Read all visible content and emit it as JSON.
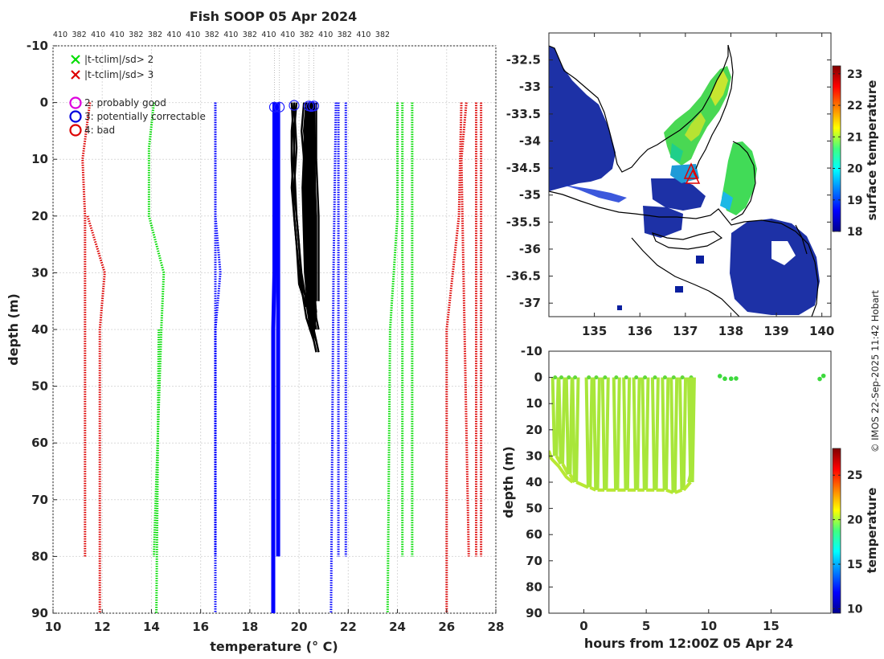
{
  "title": "Fish SOOP 05 Apr 2024",
  "credit": "© IMOS 22-Sep-2025 11:42 Hobart",
  "chart_data": [
    {
      "id": "profiles",
      "type": "line",
      "xlabel": "temperature (° C)",
      "ylabel": "depth (m)",
      "xlim": [
        10,
        28
      ],
      "ylim": [
        90,
        -10
      ],
      "xticks": [
        10,
        12,
        14,
        16,
        18,
        20,
        22,
        24,
        26,
        28
      ],
      "yticks": [
        -10,
        0,
        10,
        20,
        30,
        40,
        50,
        60,
        70,
        80,
        90
      ],
      "top_labels": [
        "410",
        "382",
        "410",
        "410",
        "382",
        "382",
        "410",
        "410",
        "382",
        "410",
        "382",
        "410",
        "410",
        "382",
        "410",
        "382",
        "410",
        "382"
      ],
      "legend": [
        {
          "marker": "x",
          "color": "#00dd00",
          "label": "|t-tclim|/sd> 2"
        },
        {
          "marker": "x",
          "color": "#dd0000",
          "label": "|t-tclim|/sd> 3"
        },
        {
          "marker": "o",
          "color": "#dd00dd",
          "label": "2: probably good"
        },
        {
          "marker": "o",
          "color": "#0000dd",
          "label": "3: potentially correctable"
        },
        {
          "marker": "o",
          "color": "#dd0000",
          "label": "4: bad"
        }
      ],
      "climatology": [
        {
          "name": "clim-mean-382",
          "color": "#0000ff",
          "dotted": true,
          "depth": [
            0,
            80
          ],
          "temp": [
            16.6,
            16.6
          ]
        },
        {
          "name": "clim-mean-410",
          "color": "#0000ff",
          "dotted": true,
          "depth": [
            0,
            20,
            25,
            30,
            40,
            90
          ],
          "temp": [
            16.6,
            16.6,
            16.7,
            16.8,
            16.6,
            16.6
          ]
        },
        {
          "name": "clim-plus2-a",
          "color": "#0000ff",
          "dotted": true,
          "depth": [
            0,
            80
          ],
          "temp": [
            21.6,
            21.6
          ]
        },
        {
          "name": "clim-plus2-b",
          "color": "#0000ff",
          "dotted": true,
          "depth": [
            0,
            80
          ],
          "temp": [
            21.9,
            21.9
          ]
        },
        {
          "name": "clim-plus2-c",
          "color": "#0000ff",
          "dotted": true,
          "depth": [
            0,
            30,
            90
          ],
          "temp": [
            21.5,
            21.4,
            21.3
          ]
        },
        {
          "name": "clim-minus-sd2-a",
          "color": "#00dd00",
          "dotted": true,
          "depth": [
            0,
            8,
            20,
            25,
            30,
            40,
            80
          ],
          "temp": [
            14.1,
            13.9,
            13.9,
            14.2,
            14.5,
            14.4,
            14.1
          ]
        },
        {
          "name": "clim-minus-sd2-b",
          "color": "#00dd00",
          "dotted": true,
          "depth": [
            40,
            90
          ],
          "temp": [
            14.3,
            14.2
          ]
        },
        {
          "name": "clim-plus-sd2-a",
          "color": "#00dd00",
          "dotted": true,
          "depth": [
            0,
            80
          ],
          "temp": [
            24.2,
            24.2
          ]
        },
        {
          "name": "clim-plus-sd2-b",
          "color": "#00dd00",
          "dotted": true,
          "depth": [
            0,
            80
          ],
          "temp": [
            24.6,
            24.6
          ]
        },
        {
          "name": "clim-plus-sd2-c",
          "color": "#00dd00",
          "dotted": true,
          "depth": [
            0,
            20,
            40,
            90
          ],
          "temp": [
            24.0,
            24.0,
            23.7,
            23.6
          ]
        },
        {
          "name": "clim-minus-sd3-a",
          "color": "#dd0000",
          "dotted": true,
          "depth": [
            0,
            10,
            20,
            80
          ],
          "temp": [
            11.5,
            11.2,
            11.3,
            11.3
          ]
        },
        {
          "name": "clim-minus-sd3-b",
          "color": "#dd0000",
          "dotted": true,
          "depth": [
            20,
            30,
            40,
            90
          ],
          "temp": [
            11.4,
            12.1,
            11.9,
            11.9
          ]
        },
        {
          "name": "clim-plus-sd3-a",
          "color": "#dd0000",
          "dotted": true,
          "depth": [
            0,
            10,
            80
          ],
          "temp": [
            26.8,
            26.6,
            26.9
          ]
        },
        {
          "name": "clim-plus-sd3-b",
          "color": "#dd0000",
          "dotted": true,
          "depth": [
            0,
            80
          ],
          "temp": [
            27.2,
            27.2
          ]
        },
        {
          "name": "clim-plus-sd3-c",
          "color": "#dd0000",
          "dotted": true,
          "depth": [
            0,
            30,
            80
          ],
          "temp": [
            27.4,
            27.4,
            27.4
          ]
        },
        {
          "name": "clim-plus-sd3-d",
          "color": "#dd0000",
          "dotted": true,
          "depth": [
            0,
            20,
            40,
            90
          ],
          "temp": [
            26.6,
            26.5,
            26.0,
            26.0
          ]
        }
      ],
      "thick_profiles": [
        {
          "name": "thick-blue-a",
          "color": "#0000ff",
          "depth": [
            0,
            80
          ],
          "temp": [
            19.15,
            19.15
          ]
        },
        {
          "name": "thick-blue-b",
          "color": "#0000ff",
          "depth": [
            0,
            30,
            40,
            90
          ],
          "temp": [
            19.0,
            19.0,
            18.95,
            18.95
          ]
        }
      ],
      "profiles": [
        {
          "name": "obs-1",
          "depth": [
            0,
            5,
            10,
            20,
            30,
            38,
            42,
            44
          ],
          "temp": [
            19.8,
            19.7,
            19.7,
            19.8,
            20.0,
            20.3,
            20.6,
            20.7
          ]
        },
        {
          "name": "obs-2",
          "depth": [
            0,
            5,
            10,
            20,
            30,
            38,
            40,
            42
          ],
          "temp": [
            20.2,
            20.1,
            20.2,
            20.2,
            20.3,
            20.5,
            20.5,
            20.6
          ]
        },
        {
          "name": "obs-3",
          "depth": [
            0,
            5,
            10,
            20,
            30,
            38,
            40
          ],
          "temp": [
            20.5,
            20.4,
            20.4,
            20.5,
            20.5,
            20.6,
            20.7
          ]
        },
        {
          "name": "obs-4",
          "depth": [
            0,
            8,
            15,
            25,
            32,
            36
          ],
          "temp": [
            19.7,
            19.8,
            19.7,
            19.9,
            20.0,
            20.3
          ]
        },
        {
          "name": "obs-5",
          "depth": [
            0,
            10,
            20,
            30,
            37
          ],
          "temp": [
            20.3,
            20.2,
            20.3,
            20.4,
            20.6
          ]
        },
        {
          "name": "obs-6",
          "depth": [
            0,
            10,
            20,
            35
          ],
          "temp": [
            20.6,
            20.6,
            20.7,
            20.7
          ]
        }
      ],
      "flag_circles": [
        {
          "temp": 19.0,
          "depth": 0.8
        },
        {
          "temp": 19.2,
          "depth": 0.8
        },
        {
          "temp": 19.8,
          "depth": 0.5
        },
        {
          "temp": 20.4,
          "depth": 0.6
        },
        {
          "temp": 20.5,
          "depth": 0.7
        },
        {
          "temp": 20.6,
          "depth": 0.6
        }
      ]
    },
    {
      "id": "sst-map",
      "type": "heatmap",
      "xlim": [
        134,
        140.2
      ],
      "ylim": [
        -37.25,
        -32
      ],
      "xticks": [
        135,
        136,
        137,
        138,
        139,
        140
      ],
      "yticks": [
        -32.5,
        -33,
        -33.5,
        -34,
        -34.5,
        -35,
        -35.5,
        -36,
        -36.5,
        -37
      ],
      "colorbar": {
        "label": "surface temperature",
        "min": 18,
        "max": 23.25,
        "ticks": [
          18,
          19,
          20,
          21,
          22,
          23
        ]
      },
      "marker": {
        "lon": 137.1,
        "lat": -34.8,
        "label": "triangle"
      }
    },
    {
      "id": "depth-time",
      "type": "scatter",
      "xlabel": "hours from 12:00Z 05 Apr 24",
      "ylabel": "depth (m)",
      "xlim": [
        -2.8,
        19.8
      ],
      "ylim": [
        90,
        -10
      ],
      "xticks": [
        0,
        5,
        10,
        15
      ],
      "yticks": [
        -10,
        0,
        10,
        20,
        30,
        40,
        50,
        60,
        70,
        80,
        90
      ],
      "casts_hours": [
        -2.5,
        -2.0,
        -1.4,
        -0.9,
        0.2,
        0.8,
        1.5,
        2.4,
        3.2,
        4.0,
        4.7,
        5.5,
        6.3,
        7.0,
        7.7,
        8.4
      ],
      "isolated_points": [
        {
          "hour": 10.9,
          "depth": -0.5
        },
        {
          "hour": 11.3,
          "depth": 0.5
        },
        {
          "hour": 11.8,
          "depth": 0.5
        },
        {
          "hour": 12.2,
          "depth": 0.4
        },
        {
          "hour": 18.9,
          "depth": 0.6
        },
        {
          "hour": 19.2,
          "depth": -0.6
        }
      ],
      "colorbar": {
        "label": "temperature",
        "min": 9.5,
        "max": 28,
        "ticks": [
          10,
          15,
          20,
          25
        ]
      }
    }
  ]
}
